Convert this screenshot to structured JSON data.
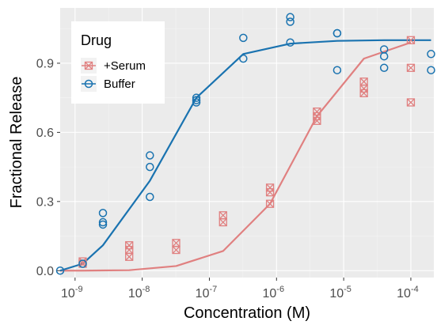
{
  "chart_data": {
    "type": "scatter",
    "xlabel": "Concentration (M)",
    "ylabel": "Fractional Release",
    "x_scale": "log10",
    "xlim": [
      6e-10,
      0.00022
    ],
    "ylim": [
      -0.03,
      1.14
    ],
    "x_ticks": [
      {
        "value": 1e-09,
        "base": "10",
        "exp": "-9"
      },
      {
        "value": 1e-08,
        "base": "10",
        "exp": "-8"
      },
      {
        "value": 1e-07,
        "base": "10",
        "exp": "-7"
      },
      {
        "value": 1e-06,
        "base": "10",
        "exp": "-6"
      },
      {
        "value": 1e-05,
        "base": "10",
        "exp": "-5"
      },
      {
        "value": 0.0001,
        "base": "10",
        "exp": "-4"
      }
    ],
    "y_ticks": [
      {
        "value": 0.0,
        "label": "0.0"
      },
      {
        "value": 0.3,
        "label": "0.3"
      },
      {
        "value": 0.6,
        "label": "0.6"
      },
      {
        "value": 0.9,
        "label": "0.9"
      }
    ],
    "grid": true,
    "legend": {
      "title": "Drug",
      "position": "top-left",
      "entries": [
        "+Serum",
        "Buffer"
      ]
    },
    "series": [
      {
        "name": "+Serum",
        "color": "#e08080",
        "marker": "boxed-x",
        "points": [
          {
            "x": 1.3e-09,
            "y": 0.03
          },
          {
            "x": 1.3e-09,
            "y": 0.04
          },
          {
            "x": 6.4e-09,
            "y": 0.06
          },
          {
            "x": 6.4e-09,
            "y": 0.09
          },
          {
            "x": 6.4e-09,
            "y": 0.11
          },
          {
            "x": 3.2e-08,
            "y": 0.09
          },
          {
            "x": 3.2e-08,
            "y": 0.12
          },
          {
            "x": 1.6e-07,
            "y": 0.21
          },
          {
            "x": 1.6e-07,
            "y": 0.24
          },
          {
            "x": 8e-07,
            "y": 0.29
          },
          {
            "x": 8e-07,
            "y": 0.34
          },
          {
            "x": 8e-07,
            "y": 0.36
          },
          {
            "x": 4e-06,
            "y": 0.65
          },
          {
            "x": 4e-06,
            "y": 0.67
          },
          {
            "x": 4e-06,
            "y": 0.69
          },
          {
            "x": 2e-05,
            "y": 0.77
          },
          {
            "x": 2e-05,
            "y": 0.79
          },
          {
            "x": 2e-05,
            "y": 0.82
          },
          {
            "x": 0.0001,
            "y": 0.73
          },
          {
            "x": 0.0001,
            "y": 0.88
          },
          {
            "x": 0.0001,
            "y": 1.0
          }
        ],
        "fit": [
          {
            "x": 6e-10,
            "y": 0.0
          },
          {
            "x": 1.3e-09,
            "y": 0.0
          },
          {
            "x": 6.4e-09,
            "y": 0.002
          },
          {
            "x": 3.2e-08,
            "y": 0.02
          },
          {
            "x": 1.6e-07,
            "y": 0.085
          },
          {
            "x": 8e-07,
            "y": 0.29
          },
          {
            "x": 4e-06,
            "y": 0.67
          },
          {
            "x": 2e-05,
            "y": 0.92
          },
          {
            "x": 0.0001,
            "y": 0.99
          }
        ]
      },
      {
        "name": "Buffer",
        "color": "#1a73b0",
        "marker": "circle",
        "points": [
          {
            "x": 6e-10,
            "y": 0.0
          },
          {
            "x": 1.3e-09,
            "y": 0.03
          },
          {
            "x": 2.6e-09,
            "y": 0.2
          },
          {
            "x": 2.6e-09,
            "y": 0.21
          },
          {
            "x": 2.6e-09,
            "y": 0.25
          },
          {
            "x": 1.3e-08,
            "y": 0.32
          },
          {
            "x": 1.3e-08,
            "y": 0.45
          },
          {
            "x": 1.3e-08,
            "y": 0.5
          },
          {
            "x": 6.4e-08,
            "y": 0.73
          },
          {
            "x": 6.4e-08,
            "y": 0.74
          },
          {
            "x": 6.4e-08,
            "y": 0.75
          },
          {
            "x": 3.2e-07,
            "y": 0.92
          },
          {
            "x": 3.2e-07,
            "y": 1.01
          },
          {
            "x": 1.6e-06,
            "y": 0.99
          },
          {
            "x": 1.6e-06,
            "y": 1.08
          },
          {
            "x": 1.6e-06,
            "y": 1.1
          },
          {
            "x": 8e-06,
            "y": 0.87
          },
          {
            "x": 8e-06,
            "y": 1.03
          },
          {
            "x": 8e-06,
            "y": 1.03
          },
          {
            "x": 4e-05,
            "y": 0.88
          },
          {
            "x": 4e-05,
            "y": 0.93
          },
          {
            "x": 4e-05,
            "y": 0.96
          },
          {
            "x": 0.0002,
            "y": 0.87
          },
          {
            "x": 0.0002,
            "y": 0.94
          }
        ],
        "fit": [
          {
            "x": 6e-10,
            "y": 0.0
          },
          {
            "x": 1.3e-09,
            "y": 0.03
          },
          {
            "x": 2.6e-09,
            "y": 0.11
          },
          {
            "x": 1.3e-08,
            "y": 0.39
          },
          {
            "x": 6.4e-08,
            "y": 0.75
          },
          {
            "x": 3.2e-07,
            "y": 0.94
          },
          {
            "x": 1.6e-06,
            "y": 0.985
          },
          {
            "x": 8e-06,
            "y": 0.997
          },
          {
            "x": 4e-05,
            "y": 1.0
          },
          {
            "x": 0.0001,
            "y": 1.0
          },
          {
            "x": 0.0002,
            "y": 1.0
          }
        ]
      }
    ]
  }
}
